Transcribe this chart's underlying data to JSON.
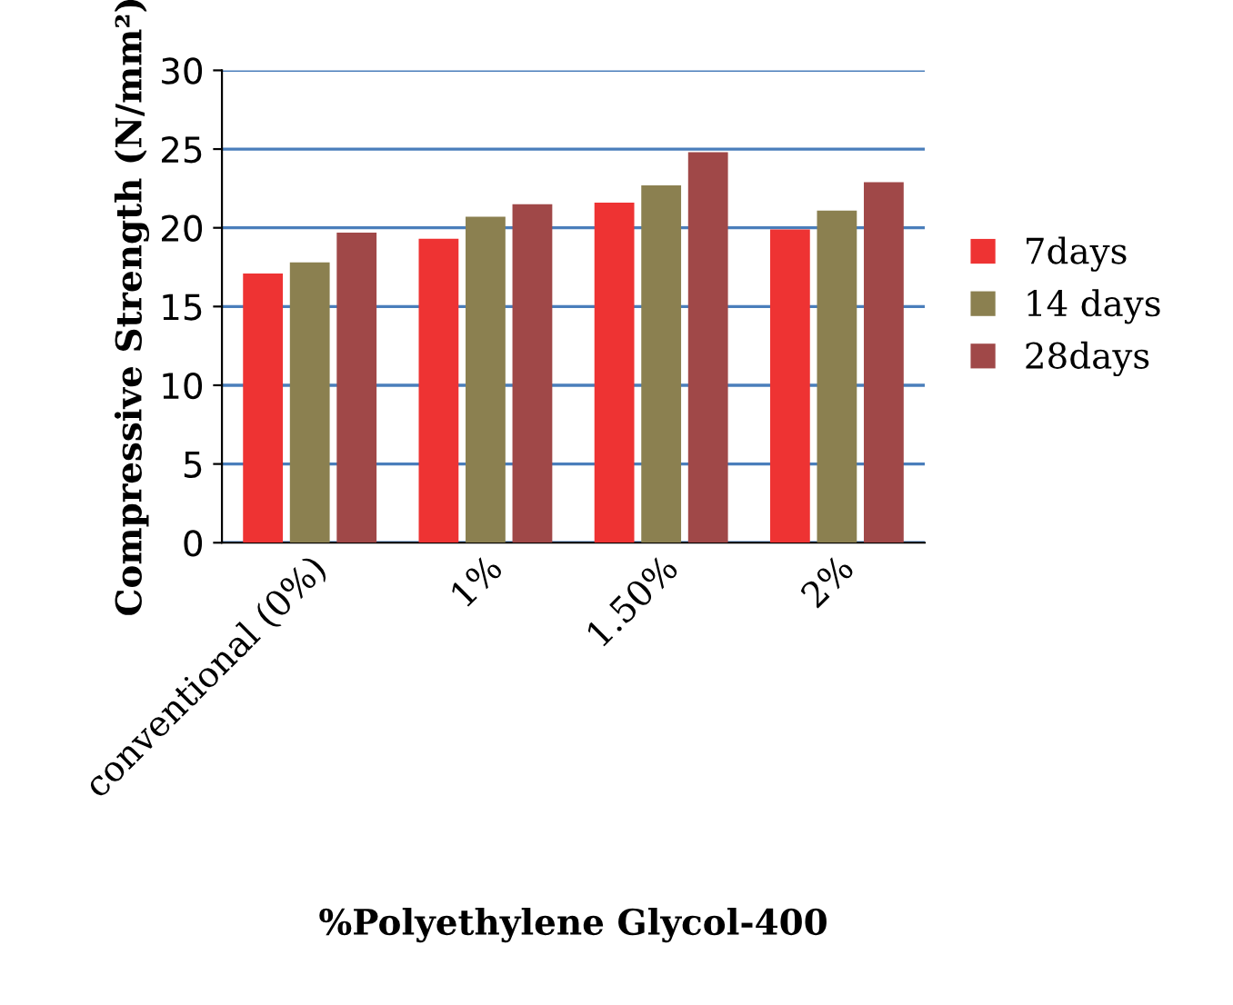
{
  "chart_data": {
    "type": "bar",
    "xlabel": "%Polyethylene Glycol-400",
    "ylabel": "Compressive Strength (N/mm²)",
    "categories": [
      "conventional (0%)",
      "1%",
      "1.50%",
      "2%"
    ],
    "series": [
      {
        "name": "7days",
        "color": "#ee3333",
        "values": [
          17.1,
          19.3,
          21.6,
          19.9
        ]
      },
      {
        "name": "14 days",
        "color": "#8b8050",
        "values": [
          17.8,
          20.7,
          22.7,
          21.1
        ]
      },
      {
        "name": "28days",
        "color": "#a04848",
        "values": [
          19.7,
          21.5,
          24.8,
          22.9
        ]
      }
    ],
    "ylim": [
      0,
      30
    ],
    "yticks": [
      0,
      5,
      10,
      15,
      20,
      25,
      30
    ],
    "grid": "y",
    "legend": "right"
  }
}
